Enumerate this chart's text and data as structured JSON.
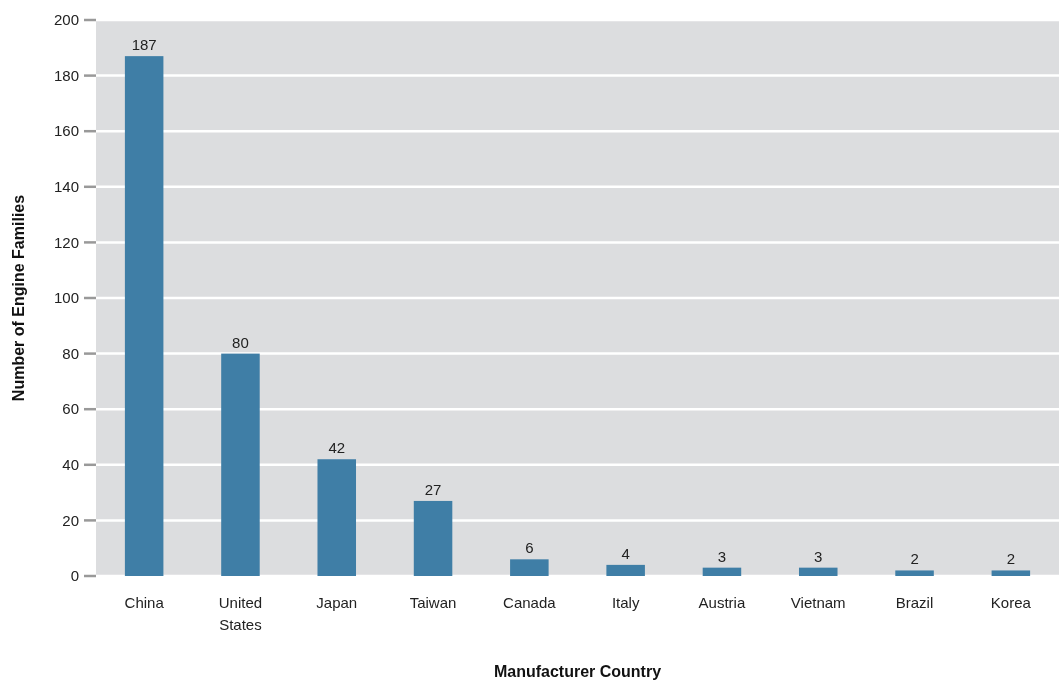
{
  "chart_data": {
    "type": "bar",
    "xlabel": "Manufacturer Country",
    "ylabel": "Number of Engine Families",
    "categories": [
      "China",
      "United States",
      "Japan",
      "Taiwan",
      "Canada",
      "Italy",
      "Austria",
      "Vietnam",
      "Brazil",
      "Korea"
    ],
    "values": [
      187,
      80,
      42,
      27,
      6,
      4,
      3,
      3,
      2,
      2
    ],
    "color": "#3f7ea6",
    "ylim": [
      0,
      200
    ],
    "yticks": [
      0,
      20,
      40,
      60,
      80,
      100,
      120,
      140,
      160,
      180,
      200
    ],
    "grid": "y",
    "data_labels": true
  }
}
